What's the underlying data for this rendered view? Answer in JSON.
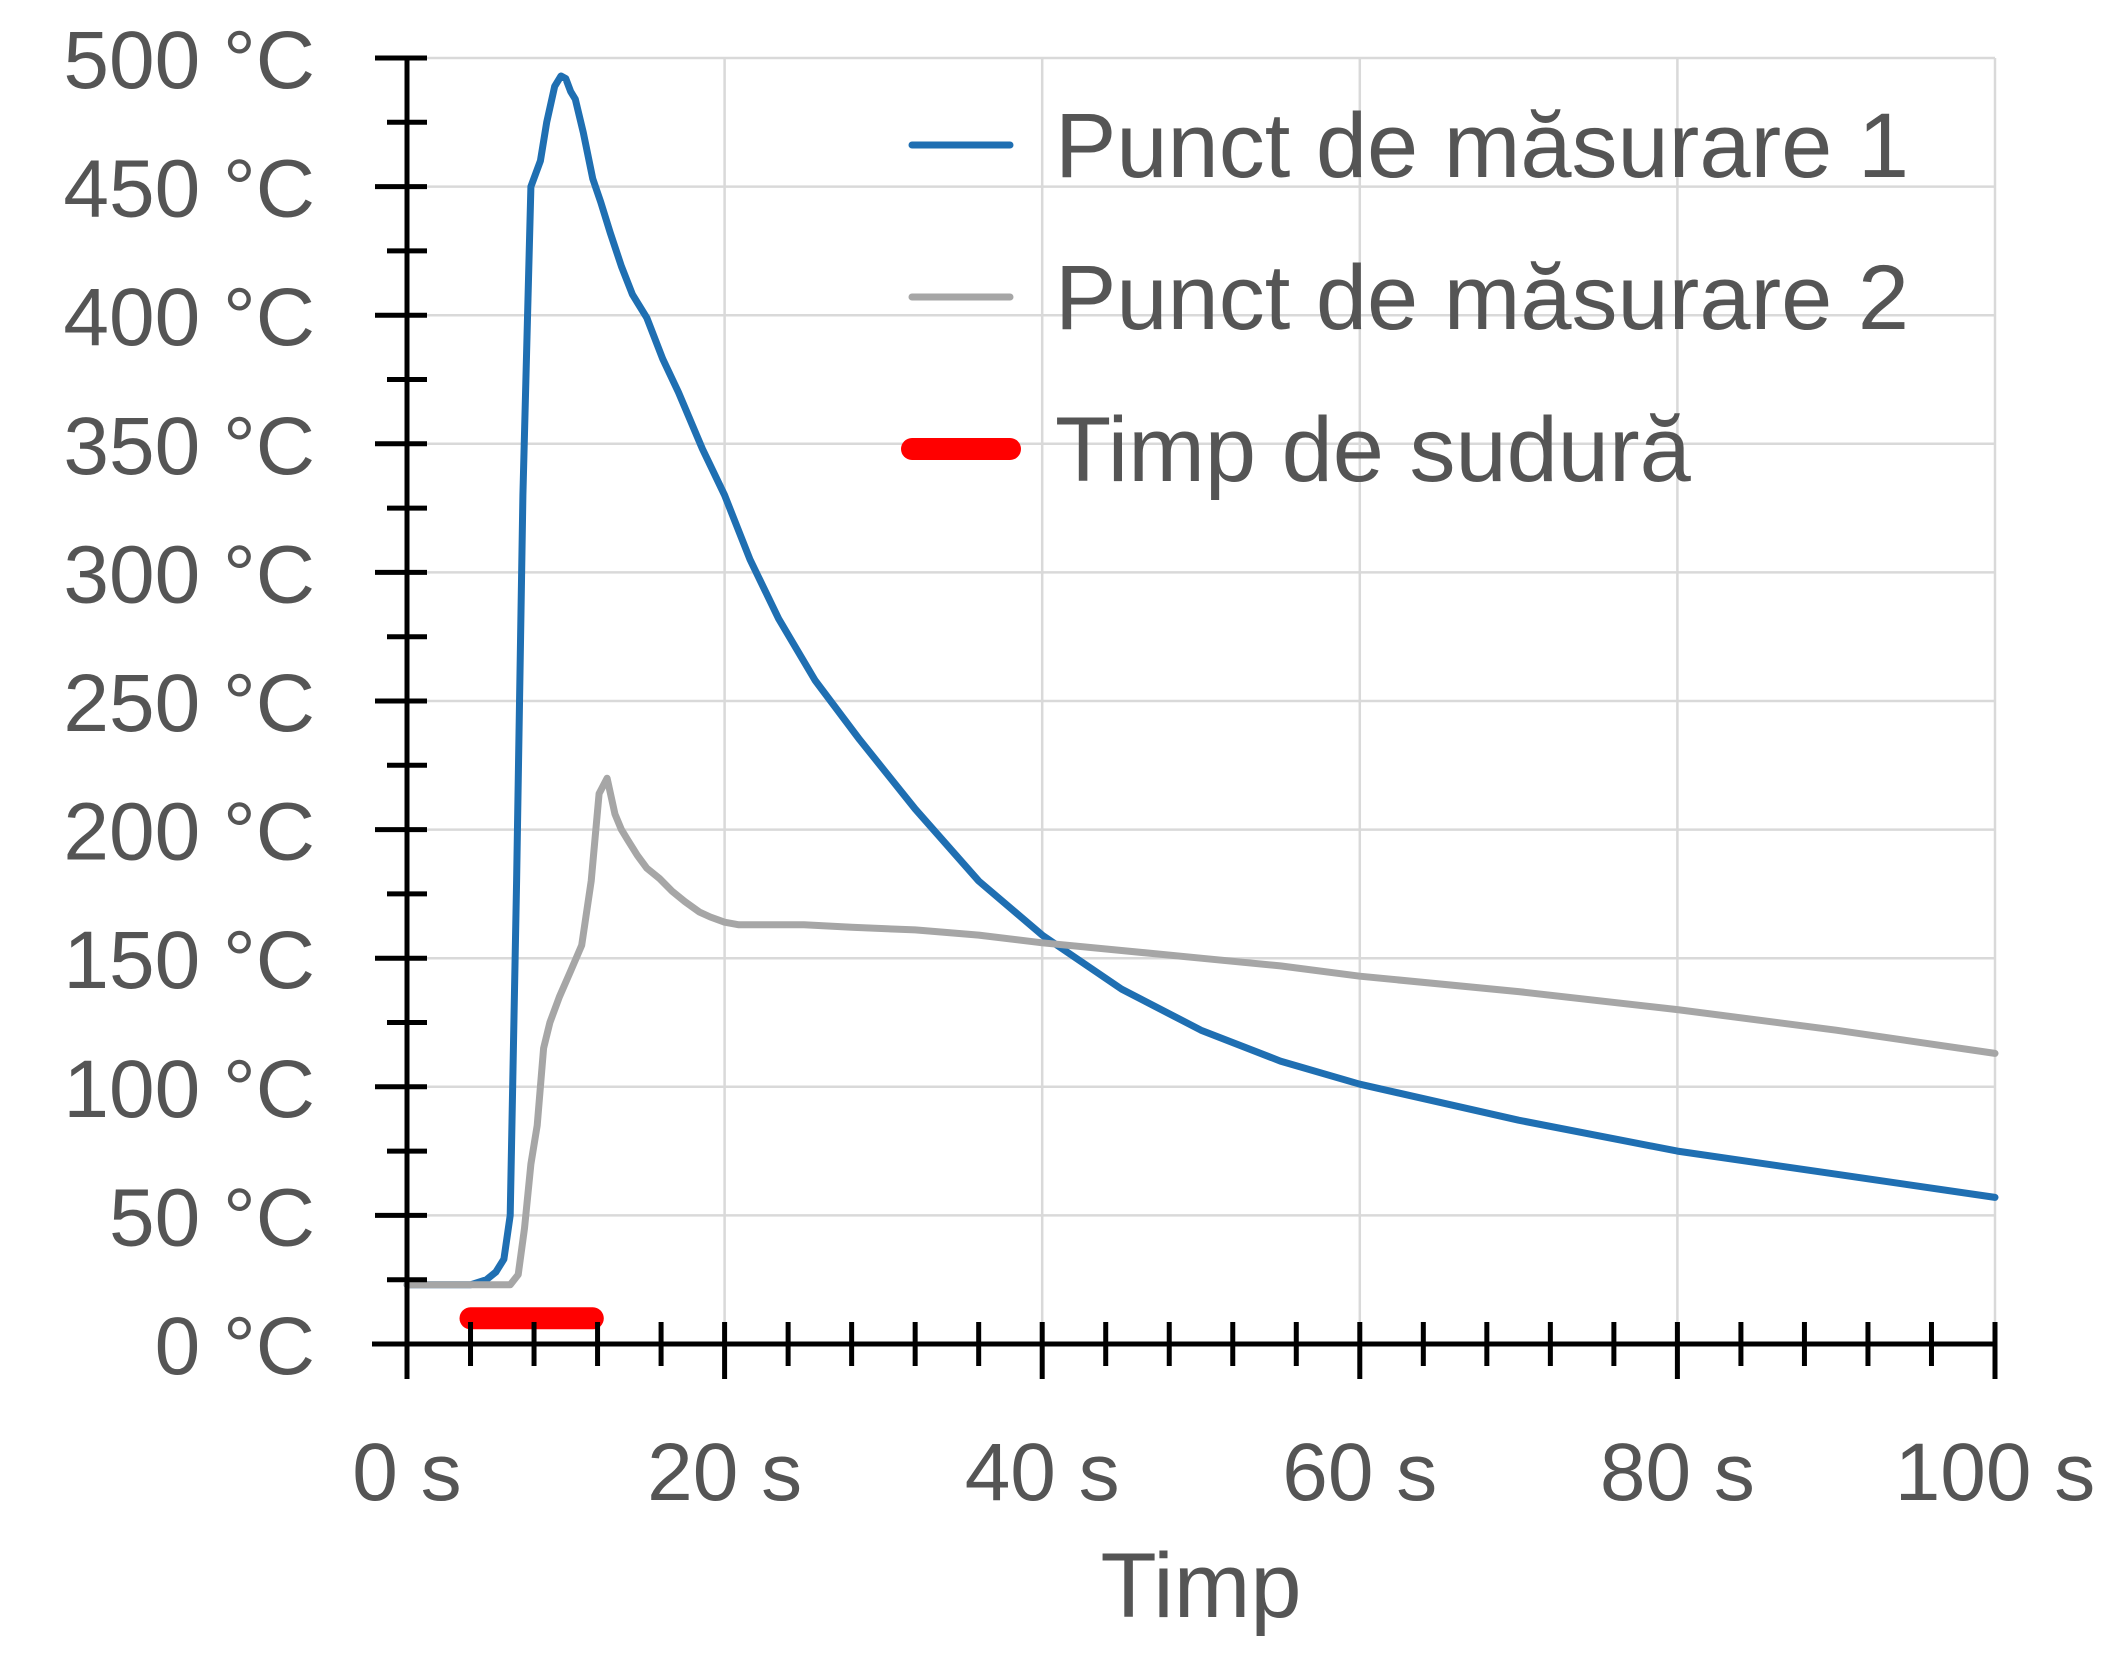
{
  "chart_data": {
    "type": "line",
    "title": "",
    "xlabel": "Timp",
    "ylabel": "",
    "xlim": [
      0,
      100
    ],
    "ylim": [
      0,
      500
    ],
    "x_tick_labels": [
      "0 s",
      "20 s",
      "40 s",
      "60 s",
      "80 s",
      "100 s"
    ],
    "x_tick_values": [
      0,
      20,
      40,
      60,
      80,
      100
    ],
    "y_tick_labels": [
      "0 °C",
      "50 °C",
      "100 °C",
      "150 °C",
      "200 °C",
      "250 °C",
      "300 °C",
      "350 °C",
      "400 °C",
      "450 °C",
      "500 °C"
    ],
    "y_tick_values": [
      0,
      50,
      100,
      150,
      200,
      250,
      300,
      350,
      400,
      450,
      500
    ],
    "grid": true,
    "legend_position": "top-right",
    "series": [
      {
        "name": "Punct de măsurare 1",
        "color": "#1f6fb2",
        "x": [
          0,
          4,
          5,
          5.6,
          6.1,
          6.5,
          6.9,
          7.3,
          7.8,
          8.4,
          8.8,
          9.3,
          9.7,
          10.0,
          10.3,
          10.6,
          11.1,
          11.7,
          12.2,
          12.8,
          13.5,
          14.2,
          15.1,
          16.1,
          17.1,
          18.6,
          20.0,
          21.6,
          23.4,
          25.7,
          28.5,
          32.0,
          36.0,
          40.0,
          45.0,
          50.0,
          55.0,
          60.0,
          70.0,
          80.0,
          90.0,
          100.0
        ],
        "y": [
          23,
          23,
          25,
          28,
          33,
          50,
          180,
          330,
          450,
          460,
          475,
          489,
          493,
          492,
          487,
          484,
          471,
          453,
          444,
          432,
          419,
          408,
          399,
          383,
          370,
          348,
          330,
          305,
          282,
          258,
          235,
          208,
          180,
          159,
          138,
          122,
          110,
          101,
          87,
          75,
          66,
          57
        ]
      },
      {
        "name": "Punct de măsurare 2",
        "color": "#a6a6a6",
        "x": [
          0,
          6.5,
          7.0,
          7.4,
          7.8,
          8.2,
          8.6,
          9.0,
          9.6,
          10.3,
          11.0,
          11.6,
          12.1,
          12.6,
          13.1,
          13.5,
          13.9,
          14.5,
          15.1,
          15.9,
          16.7,
          17.5,
          18.4,
          19.1,
          20.0,
          20.9,
          22.0,
          23.5,
          25.0,
          28.0,
          32.0,
          36.0,
          40.0,
          45.0,
          50.0,
          55.0,
          60.0,
          70.0,
          80.0,
          90.0,
          100.0
        ],
        "y": [
          23,
          23,
          27,
          45,
          70,
          85,
          115,
          125,
          135,
          145,
          155,
          180,
          214,
          220,
          206,
          200,
          196,
          190,
          185,
          181,
          176,
          172,
          168,
          166,
          164,
          163,
          163,
          163,
          163,
          162,
          161,
          159,
          156,
          153,
          150,
          147,
          143,
          137,
          130,
          122,
          113
        ]
      },
      {
        "name": "Timp de sudură",
        "color": "#ff0000",
        "x": [
          4,
          11.7
        ],
        "y": [
          10,
          10
        ]
      }
    ]
  }
}
